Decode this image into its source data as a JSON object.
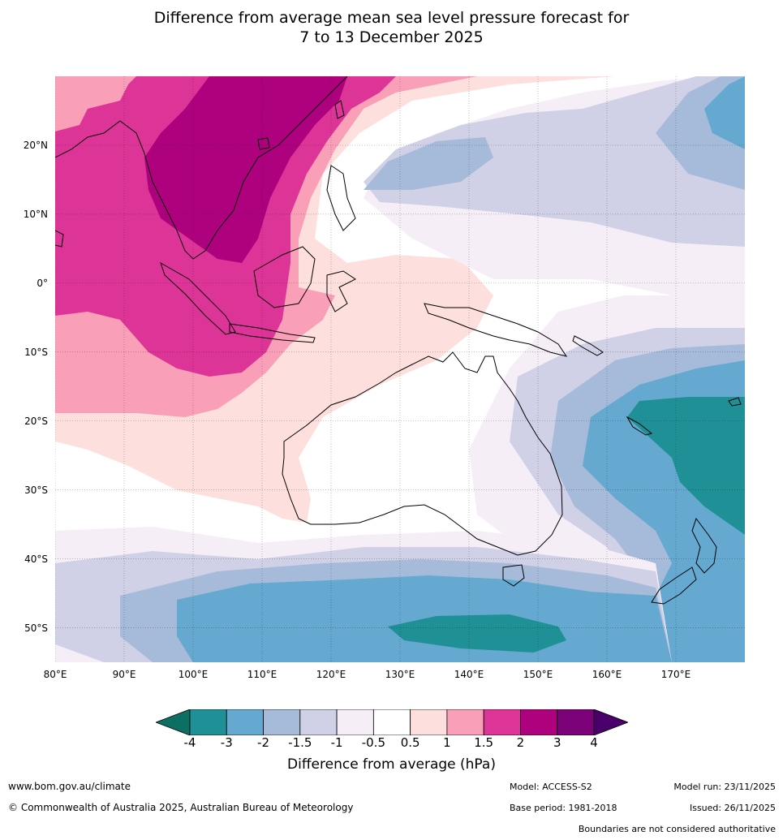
{
  "title": {
    "line1": "Difference from average mean sea level pressure forecast for",
    "line2": "7 to 13 December 2025"
  },
  "map": {
    "lat_labels": [
      "20°N",
      "10°N",
      "0°",
      "10°S",
      "20°S",
      "30°S",
      "40°S",
      "50°S"
    ],
    "lon_labels": [
      "80°E",
      "90°E",
      "100°E",
      "110°E",
      "120°E",
      "130°E",
      "140°E",
      "150°E",
      "160°E",
      "170°E"
    ],
    "lat_values": [
      20,
      10,
      0,
      -10,
      -20,
      -30,
      -40,
      -50
    ],
    "lon_values": [
      80,
      90,
      100,
      110,
      120,
      130,
      140,
      150,
      160,
      170
    ],
    "extent": {
      "lon_min": 80,
      "lon_max": 180,
      "lat_min": -55,
      "lat_max": 30
    },
    "regions": [
      "Asia",
      "Maritime Continent",
      "Australia",
      "Papua New Guinea",
      "New Zealand",
      "Tasmania"
    ]
  },
  "colorbar": {
    "colors": [
      "#0d6e62",
      "#1f9196",
      "#65a9d0",
      "#a6bbd9",
      "#d0d1e6",
      "#f5eef6",
      "#ffffff",
      "#fde0dd",
      "#f99fb8",
      "#dd3497",
      "#ae017e",
      "#7a0177",
      "#49006a"
    ],
    "ticks": [
      "-4",
      "-3",
      "-2",
      "-1.5",
      "-1",
      "-0.5",
      "0.5",
      "1",
      "1.5",
      "2",
      "3",
      "4"
    ],
    "label": "Difference from average (hPa)"
  },
  "footer": {
    "website": "www.bom.gov.au/climate",
    "copyright": "© Commonwealth of Australia 2025, Australian Bureau of Meteorology",
    "model": "Model: ACCESS-S2",
    "base_period": "Base period: 1981-2018",
    "model_run": "Model run: 23/11/2025",
    "issued": "Issued: 26/11/2025",
    "disclaimer": "Boundaries are not considered authoritative"
  }
}
